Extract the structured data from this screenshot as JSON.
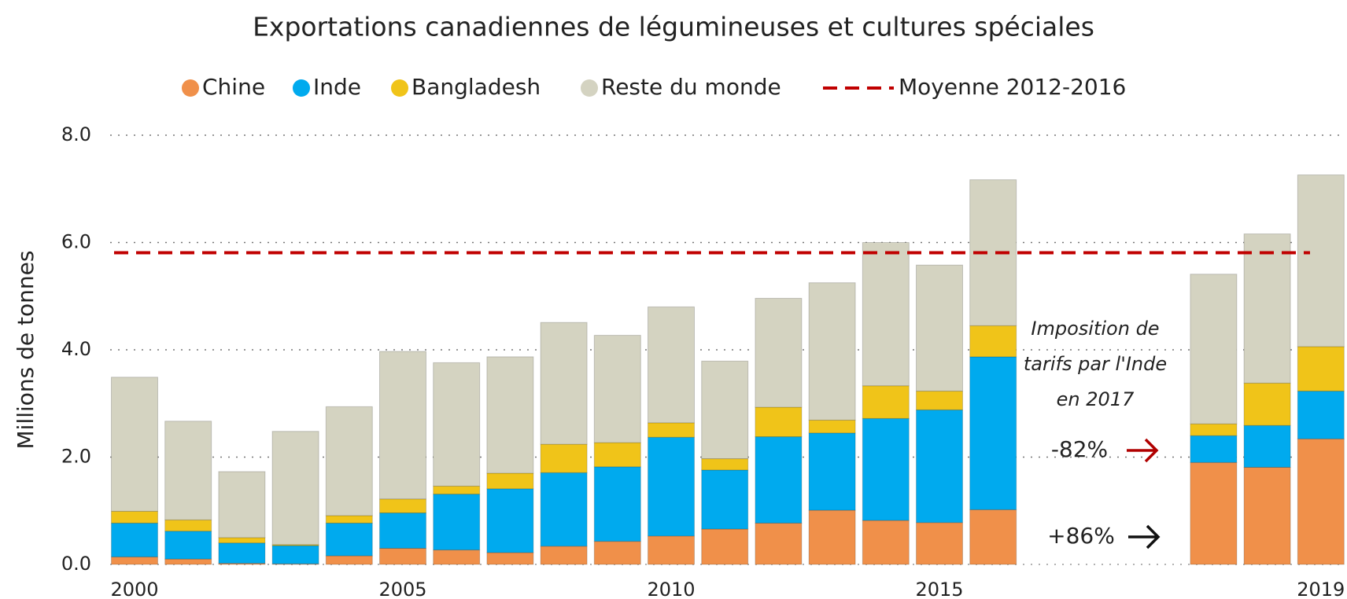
{
  "chart_data": {
    "type": "stacked_bar",
    "title": "Exportations canadiennes de légumineuses et cultures spéciales",
    "ylabel": "Millions de tonnes",
    "categories": [
      "2000",
      null,
      null,
      null,
      null,
      "2005",
      null,
      null,
      null,
      null,
      "2010",
      null,
      null,
      null,
      null,
      "2015",
      null,
      null,
      null,
      "2019"
    ],
    "series": [
      {
        "name": "Chine",
        "color": "#f0904a",
        "values": [
          0.14,
          0.1,
          0.02,
          0.01,
          0.16,
          0.3,
          0.27,
          0.22,
          0.34,
          0.43,
          0.53,
          0.66,
          0.77,
          1.01,
          0.82,
          0.78,
          1.02,
          1.9,
          1.81,
          2.34
        ]
      },
      {
        "name": "Inde",
        "color": "#00aaee",
        "values": [
          0.63,
          0.52,
          0.38,
          0.34,
          0.61,
          0.66,
          1.04,
          1.19,
          1.37,
          1.39,
          1.84,
          1.1,
          1.61,
          1.44,
          1.9,
          2.1,
          2.85,
          0.5,
          0.78,
          0.89
        ]
      },
      {
        "name": "Bangladesh",
        "color": "#f0c419",
        "values": [
          0.22,
          0.21,
          0.1,
          0.02,
          0.14,
          0.26,
          0.15,
          0.29,
          0.53,
          0.45,
          0.27,
          0.21,
          0.55,
          0.24,
          0.61,
          0.35,
          0.58,
          0.22,
          0.79,
          0.83
        ]
      },
      {
        "name": "Reste du monde",
        "color": "#d4d3c1",
        "values": [
          2.5,
          1.84,
          1.23,
          2.11,
          2.03,
          2.75,
          2.3,
          2.17,
          2.27,
          2.0,
          2.16,
          1.82,
          2.03,
          2.56,
          2.67,
          2.35,
          2.72,
          2.79,
          2.78,
          3.2
        ]
      }
    ],
    "average": {
      "name": "Moyenne 2012-2016",
      "value": 5.81,
      "color": "#c00000"
    },
    "ylim": [
      0,
      8
    ],
    "yticks": [
      {
        "value": 0,
        "label": "0.0"
      },
      {
        "value": 2,
        "label": "2.0"
      },
      {
        "value": 4,
        "label": "4.0"
      },
      {
        "value": 6,
        "label": "6.0"
      },
      {
        "value": 8,
        "label": "8.0"
      }
    ],
    "grid": true,
    "annotation": {
      "lines": [
        "Imposition de",
        "tarifs par l'Inde",
        "en 2017"
      ],
      "india_change": "-82%",
      "china_change": "+86%"
    }
  }
}
